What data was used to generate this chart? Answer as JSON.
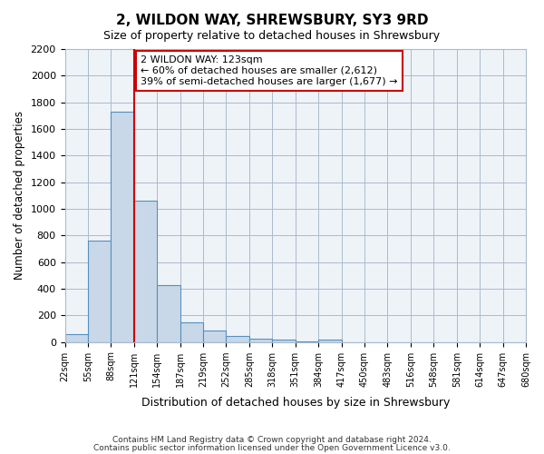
{
  "title": "2, WILDON WAY, SHREWSBURY, SY3 9RD",
  "subtitle": "Size of property relative to detached houses in Shrewsbury",
  "xlabel": "Distribution of detached houses by size in Shrewsbury",
  "ylabel": "Number of detached properties",
  "bar_color": "#c8d8e8",
  "bar_edge_color": "#5590c0",
  "bin_labels": [
    "22sqm",
    "55sqm",
    "88sqm",
    "121sqm",
    "154sqm",
    "187sqm",
    "219sqm",
    "252sqm",
    "285sqm",
    "318sqm",
    "351sqm",
    "384sqm",
    "417sqm",
    "450sqm",
    "483sqm",
    "516sqm",
    "548sqm",
    "581sqm",
    "614sqm",
    "647sqm",
    "680sqm"
  ],
  "bar_values": [
    60,
    760,
    1730,
    1060,
    430,
    150,
    85,
    45,
    25,
    15,
    5,
    20,
    0,
    0,
    0,
    0,
    0,
    0,
    0,
    0
  ],
  "vline_x": 3,
  "vline_color": "#cc0000",
  "ylim": [
    0,
    2200
  ],
  "yticks": [
    0,
    200,
    400,
    600,
    800,
    1000,
    1200,
    1400,
    1600,
    1800,
    2000,
    2200
  ],
  "annotation_title": "2 WILDON WAY: 123sqm",
  "annotation_line1": "← 60% of detached houses are smaller (2,612)",
  "annotation_line2": "39% of semi-detached houses are larger (1,677) →",
  "annotation_box_color": "#ffffff",
  "annotation_box_edge": "#cc0000",
  "footer_line1": "Contains HM Land Registry data © Crown copyright and database right 2024.",
  "footer_line2": "Contains public sector information licensed under the Open Government Licence v3.0.",
  "background_color": "#eef3f8"
}
